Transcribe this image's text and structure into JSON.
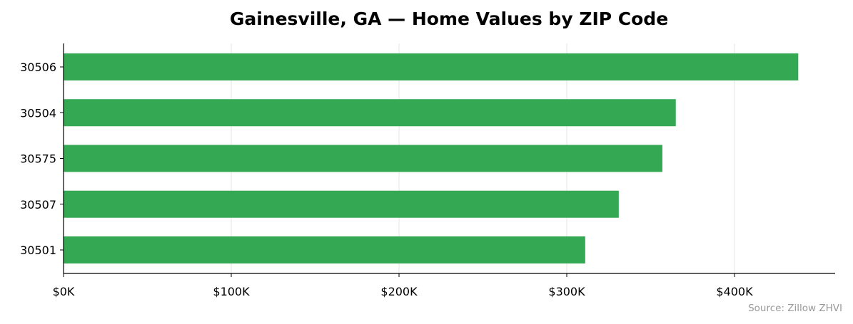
{
  "chart_data": {
    "type": "bar",
    "orientation": "horizontal",
    "title": "Gainesville, GA — Home Values by ZIP Code",
    "xlabel": "",
    "ylabel": "",
    "categories": [
      "30506",
      "30504",
      "30575",
      "30507",
      "30501"
    ],
    "values": [
      438000,
      365000,
      357000,
      331000,
      311000
    ],
    "xlim": [
      0,
      460000
    ],
    "x_ticks": [
      0,
      100000,
      200000,
      300000,
      400000
    ],
    "x_tick_labels": [
      "$0K",
      "$100K",
      "$200K",
      "$300K",
      "$400K"
    ],
    "grid": "vertical",
    "legend": "none",
    "source": "Source: Zillow ZHVI"
  },
  "colors": {
    "bar": "#34a853",
    "grid": "#e6e6e6",
    "axis": "#000000",
    "source": "#999999"
  }
}
